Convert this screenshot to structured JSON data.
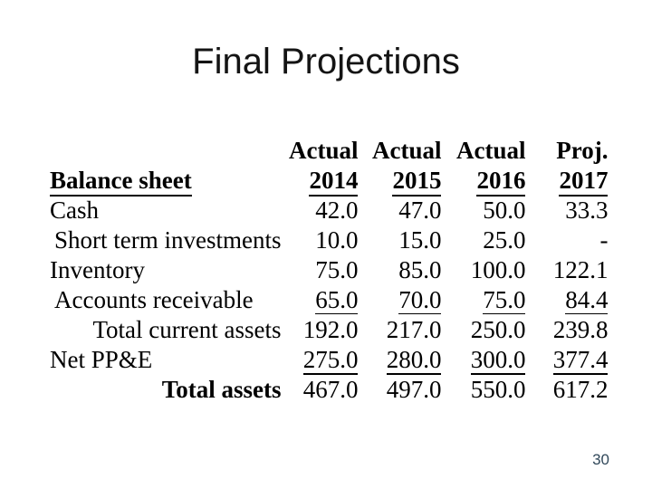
{
  "slide": {
    "title": "Final Projections",
    "page_number": "30"
  },
  "table": {
    "period_headers": [
      "Actual",
      "Actual",
      "Actual",
      "Proj."
    ],
    "section_header": "Balance sheet",
    "year_headers": [
      "2014",
      "2015",
      "2016",
      "2017"
    ],
    "rows": [
      {
        "label": "Cash",
        "values": [
          "42.0",
          "47.0",
          "50.0",
          "33.3"
        ]
      },
      {
        "label": "Short term investments",
        "values": [
          "10.0",
          "15.0",
          "25.0",
          "-"
        ]
      },
      {
        "label": "Inventory",
        "values": [
          "75.0",
          "85.0",
          "100.0",
          "122.1"
        ]
      },
      {
        "label": "Accounts receivable",
        "values": [
          "65.0",
          "70.0",
          "75.0",
          "84.4"
        ]
      },
      {
        "label": "Total current assets",
        "values": [
          "192.0",
          "217.0",
          "250.0",
          "239.8"
        ]
      },
      {
        "label": "Net PP&E",
        "values": [
          "275.0",
          "280.0",
          "300.0",
          "377.4"
        ]
      },
      {
        "label": "Total assets",
        "values": [
          "467.0",
          "497.0",
          "550.0",
          "617.2"
        ]
      }
    ]
  },
  "colors": {
    "background": "#ffffff",
    "text": "#000000",
    "page_number": "#31485a"
  }
}
